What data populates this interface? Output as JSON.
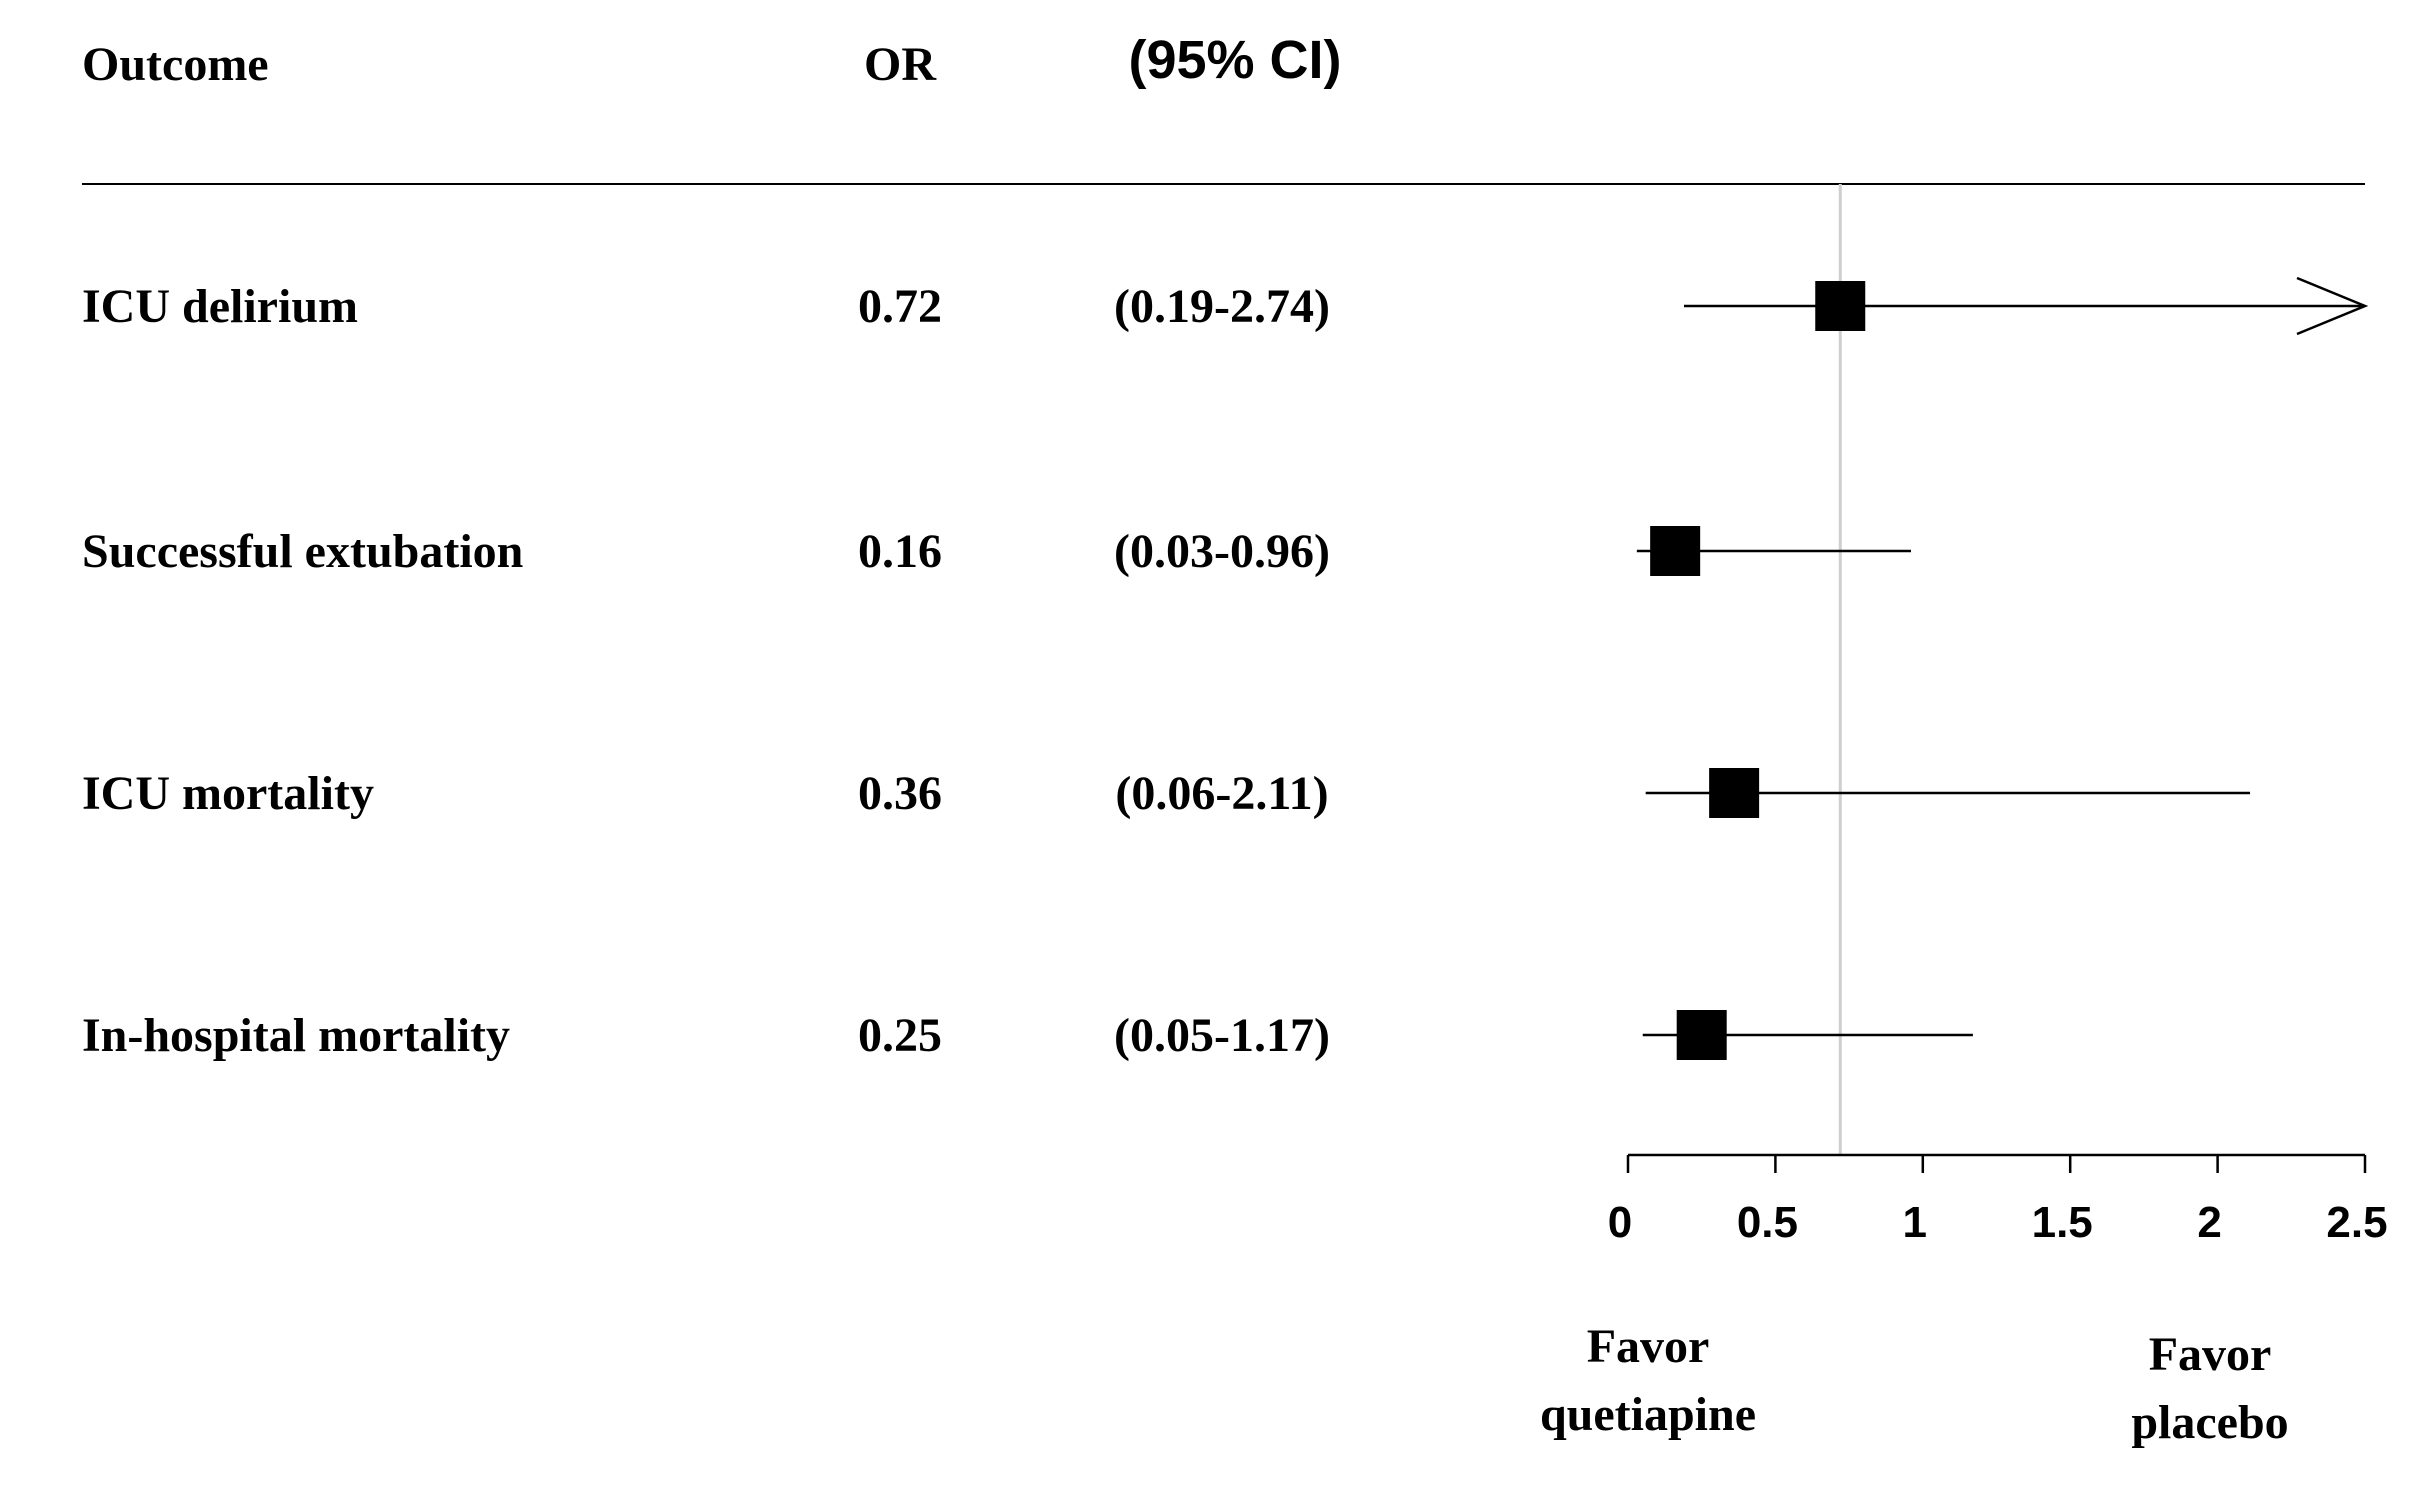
{
  "header": {
    "outcome_label": "Outcome",
    "or_label": "OR",
    "ci_label": "(95% CI)"
  },
  "chart_data": {
    "type": "forest",
    "xlim": [
      0,
      2.5
    ],
    "reference_value": 0.72,
    "x_ticks": [
      "0",
      "0.5",
      "1",
      "1.5",
      "2",
      "2.5"
    ],
    "rows": [
      {
        "outcome": "ICU delirium",
        "or_text": "0.72",
        "ci_text": "(0.19-2.74)",
        "or": 0.72,
        "lower": 0.19,
        "upper": 2.74
      },
      {
        "outcome": "Successful extubation",
        "or_text": "0.16",
        "ci_text": "(0.03-0.96)",
        "or": 0.16,
        "lower": 0.03,
        "upper": 0.96
      },
      {
        "outcome": "ICU mortality",
        "or_text": "0.36",
        "ci_text": "(0.06-2.11)",
        "or": 0.36,
        "lower": 0.06,
        "upper": 2.11
      },
      {
        "outcome": "In-hospital mortality",
        "or_text": "0.25",
        "ci_text": "(0.05-1.17)",
        "or": 0.25,
        "lower": 0.05,
        "upper": 1.17
      }
    ],
    "favor_left": {
      "line1": "Favor",
      "line2": "quetiapine"
    },
    "favor_right": {
      "line1": "Favor",
      "line2": "placebo"
    }
  }
}
